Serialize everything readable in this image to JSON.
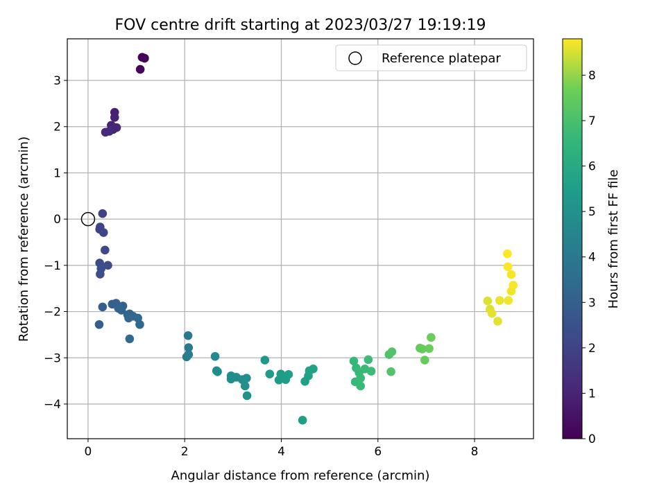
{
  "chart_data": {
    "type": "scatter",
    "title": "FOV centre drift starting at 2023/03/27 19:19:19",
    "xlabel": "Angular distance from reference (arcmin)",
    "ylabel": "Rotation from reference (arcmin)",
    "xlim": [
      -0.43,
      9.22
    ],
    "ylim": [
      -4.75,
      3.9
    ],
    "xticks": [
      0,
      2,
      4,
      6,
      8
    ],
    "yticks": [
      -4,
      -3,
      -2,
      -1,
      0,
      1,
      2,
      3
    ],
    "grid": true,
    "legend": {
      "location": "upper right",
      "entries": [
        {
          "label": "Reference platepar",
          "marker": "open-circle"
        }
      ]
    },
    "reference_point": {
      "x": 0.0,
      "y": 0.0
    },
    "colorbar": {
      "label": "Hours from first FF file",
      "min": 0,
      "max": 8.8,
      "ticks": [
        0,
        1,
        2,
        3,
        4,
        5,
        6,
        7,
        8
      ],
      "colormap": "viridis"
    },
    "points": [
      {
        "x": 1.12,
        "y": 3.5,
        "h": 0.1
      },
      {
        "x": 1.17,
        "y": 3.48,
        "h": 0.12
      },
      {
        "x": 1.08,
        "y": 3.24,
        "h": 0.15
      },
      {
        "x": 0.55,
        "y": 2.31,
        "h": 0.9
      },
      {
        "x": 0.55,
        "y": 2.2,
        "h": 0.95
      },
      {
        "x": 0.48,
        "y": 2.03,
        "h": 1.0
      },
      {
        "x": 0.59,
        "y": 1.98,
        "h": 1.05
      },
      {
        "x": 0.52,
        "y": 1.94,
        "h": 1.05
      },
      {
        "x": 0.44,
        "y": 1.9,
        "h": 1.1
      },
      {
        "x": 0.36,
        "y": 1.88,
        "h": 1.1
      },
      {
        "x": 0.3,
        "y": 0.12,
        "h": 2.0
      },
      {
        "x": 0.25,
        "y": -0.17,
        "h": 2.05
      },
      {
        "x": 0.24,
        "y": -0.22,
        "h": 2.05
      },
      {
        "x": 0.32,
        "y": -0.29,
        "h": 2.1
      },
      {
        "x": 0.35,
        "y": -0.67,
        "h": 2.2
      },
      {
        "x": 0.24,
        "y": -0.95,
        "h": 2.3
      },
      {
        "x": 0.41,
        "y": -1.0,
        "h": 2.35
      },
      {
        "x": 0.27,
        "y": -1.07,
        "h": 2.35
      },
      {
        "x": 0.25,
        "y": -1.19,
        "h": 2.4
      },
      {
        "x": 0.3,
        "y": -1.9,
        "h": 3.0
      },
      {
        "x": 0.23,
        "y": -2.28,
        "h": 3.0
      },
      {
        "x": 0.5,
        "y": -1.84,
        "h": 3.0
      },
      {
        "x": 0.58,
        "y": -1.82,
        "h": 3.05
      },
      {
        "x": 0.72,
        "y": -1.88,
        "h": 3.1
      },
      {
        "x": 0.63,
        "y": -1.93,
        "h": 3.1
      },
      {
        "x": 0.69,
        "y": -1.97,
        "h": 3.15
      },
      {
        "x": 0.82,
        "y": -2.07,
        "h": 3.2
      },
      {
        "x": 0.86,
        "y": -2.05,
        "h": 3.2
      },
      {
        "x": 0.93,
        "y": -2.1,
        "h": 3.25
      },
      {
        "x": 0.84,
        "y": -2.14,
        "h": 3.25
      },
      {
        "x": 1.03,
        "y": -2.14,
        "h": 3.3
      },
      {
        "x": 1.07,
        "y": -2.28,
        "h": 3.35
      },
      {
        "x": 0.86,
        "y": -2.59,
        "h": 3.4
      },
      {
        "x": 2.07,
        "y": -2.52,
        "h": 4.0
      },
      {
        "x": 2.08,
        "y": -2.78,
        "h": 4.05
      },
      {
        "x": 2.08,
        "y": -2.93,
        "h": 4.1
      },
      {
        "x": 2.04,
        "y": -2.98,
        "h": 4.1
      },
      {
        "x": 2.63,
        "y": -2.97,
        "h": 4.7
      },
      {
        "x": 2.66,
        "y": -3.28,
        "h": 4.75
      },
      {
        "x": 2.68,
        "y": -3.3,
        "h": 4.75
      },
      {
        "x": 2.96,
        "y": -3.39,
        "h": 4.8
      },
      {
        "x": 2.96,
        "y": -3.46,
        "h": 4.8
      },
      {
        "x": 3.07,
        "y": -3.42,
        "h": 4.85
      },
      {
        "x": 3.19,
        "y": -3.47,
        "h": 4.85
      },
      {
        "x": 3.28,
        "y": -3.44,
        "h": 4.9
      },
      {
        "x": 3.25,
        "y": -3.61,
        "h": 4.9
      },
      {
        "x": 3.29,
        "y": -3.82,
        "h": 4.95
      },
      {
        "x": 3.66,
        "y": -3.05,
        "h": 5.3
      },
      {
        "x": 3.76,
        "y": -3.35,
        "h": 5.35
      },
      {
        "x": 3.95,
        "y": -3.48,
        "h": 5.4
      },
      {
        "x": 3.99,
        "y": -3.35,
        "h": 5.4
      },
      {
        "x": 4.05,
        "y": -3.41,
        "h": 5.45
      },
      {
        "x": 4.09,
        "y": -3.47,
        "h": 5.45
      },
      {
        "x": 4.15,
        "y": -3.36,
        "h": 5.5
      },
      {
        "x": 4.44,
        "y": -4.35,
        "h": 5.55
      },
      {
        "x": 4.49,
        "y": -3.51,
        "h": 5.6
      },
      {
        "x": 4.56,
        "y": -3.39,
        "h": 5.6
      },
      {
        "x": 4.58,
        "y": -3.28,
        "h": 5.65
      },
      {
        "x": 4.66,
        "y": -3.24,
        "h": 5.65
      },
      {
        "x": 5.5,
        "y": -3.07,
        "h": 6.6
      },
      {
        "x": 5.55,
        "y": -3.22,
        "h": 6.6
      },
      {
        "x": 5.53,
        "y": -3.52,
        "h": 6.65
      },
      {
        "x": 5.61,
        "y": -3.32,
        "h": 6.65
      },
      {
        "x": 5.64,
        "y": -3.44,
        "h": 6.7
      },
      {
        "x": 5.64,
        "y": -3.61,
        "h": 6.7
      },
      {
        "x": 5.73,
        "y": -3.24,
        "h": 6.7
      },
      {
        "x": 5.8,
        "y": -3.04,
        "h": 6.75
      },
      {
        "x": 5.86,
        "y": -3.29,
        "h": 6.75
      },
      {
        "x": 6.23,
        "y": -2.93,
        "h": 7.1
      },
      {
        "x": 6.29,
        "y": -2.87,
        "h": 7.15
      },
      {
        "x": 6.27,
        "y": -3.3,
        "h": 7.15
      },
      {
        "x": 6.87,
        "y": -2.79,
        "h": 7.5
      },
      {
        "x": 6.92,
        "y": -2.81,
        "h": 7.55
      },
      {
        "x": 6.97,
        "y": -3.05,
        "h": 7.55
      },
      {
        "x": 7.06,
        "y": -2.8,
        "h": 7.6
      },
      {
        "x": 7.1,
        "y": -2.56,
        "h": 7.65
      },
      {
        "x": 8.27,
        "y": -1.77,
        "h": 8.55
      },
      {
        "x": 8.32,
        "y": -1.95,
        "h": 8.55
      },
      {
        "x": 8.36,
        "y": -2.04,
        "h": 8.6
      },
      {
        "x": 8.48,
        "y": -2.21,
        "h": 8.6
      },
      {
        "x": 8.52,
        "y": -1.76,
        "h": 8.65
      },
      {
        "x": 8.7,
        "y": -1.76,
        "h": 8.7
      },
      {
        "x": 8.76,
        "y": -1.56,
        "h": 8.7
      },
      {
        "x": 8.8,
        "y": -1.43,
        "h": 8.75
      },
      {
        "x": 8.76,
        "y": -1.2,
        "h": 8.75
      },
      {
        "x": 8.69,
        "y": -1.03,
        "h": 8.8
      },
      {
        "x": 8.68,
        "y": -0.75,
        "h": 8.8
      }
    ]
  }
}
